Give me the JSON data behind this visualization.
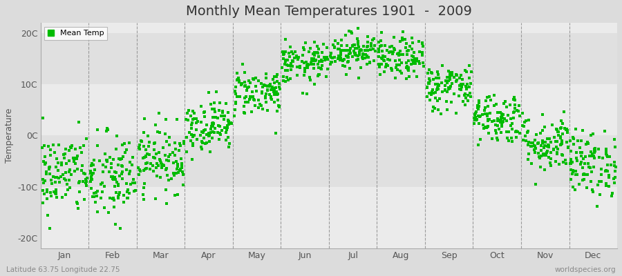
{
  "title": "Monthly Mean Temperatures 1901  -  2009",
  "ylabel": "Temperature",
  "ytick_labels": [
    "20C",
    "10C",
    "0C",
    "-10C",
    "-20C"
  ],
  "ytick_values": [
    20,
    10,
    0,
    -10,
    -20
  ],
  "ylim": [
    -22,
    22
  ],
  "months": [
    "Jan",
    "Feb",
    "Mar",
    "Apr",
    "May",
    "Jun",
    "Jul",
    "Aug",
    "Sep",
    "Oct",
    "Nov",
    "Dec"
  ],
  "mean_temps": [
    -7.5,
    -8.5,
    -4.5,
    2.0,
    8.5,
    14.0,
    16.5,
    15.0,
    9.5,
    3.5,
    -1.5,
    -5.5
  ],
  "std_temps": [
    4.0,
    4.5,
    3.2,
    2.5,
    2.3,
    2.0,
    1.8,
    2.0,
    2.3,
    2.5,
    2.8,
    3.2
  ],
  "dot_color": "#00BB00",
  "dot_size": 7,
  "legend_label": "Mean Temp",
  "bg_color": "#DCDCDC",
  "band_colors": [
    "#EBEBEB",
    "#E0E0E0"
  ],
  "subtitle_left": "Latitude 63.75 Longitude 22.75",
  "subtitle_right": "worldspecies.org",
  "title_fontsize": 14,
  "axis_fontsize": 9,
  "tick_fontsize": 9,
  "years": 109
}
